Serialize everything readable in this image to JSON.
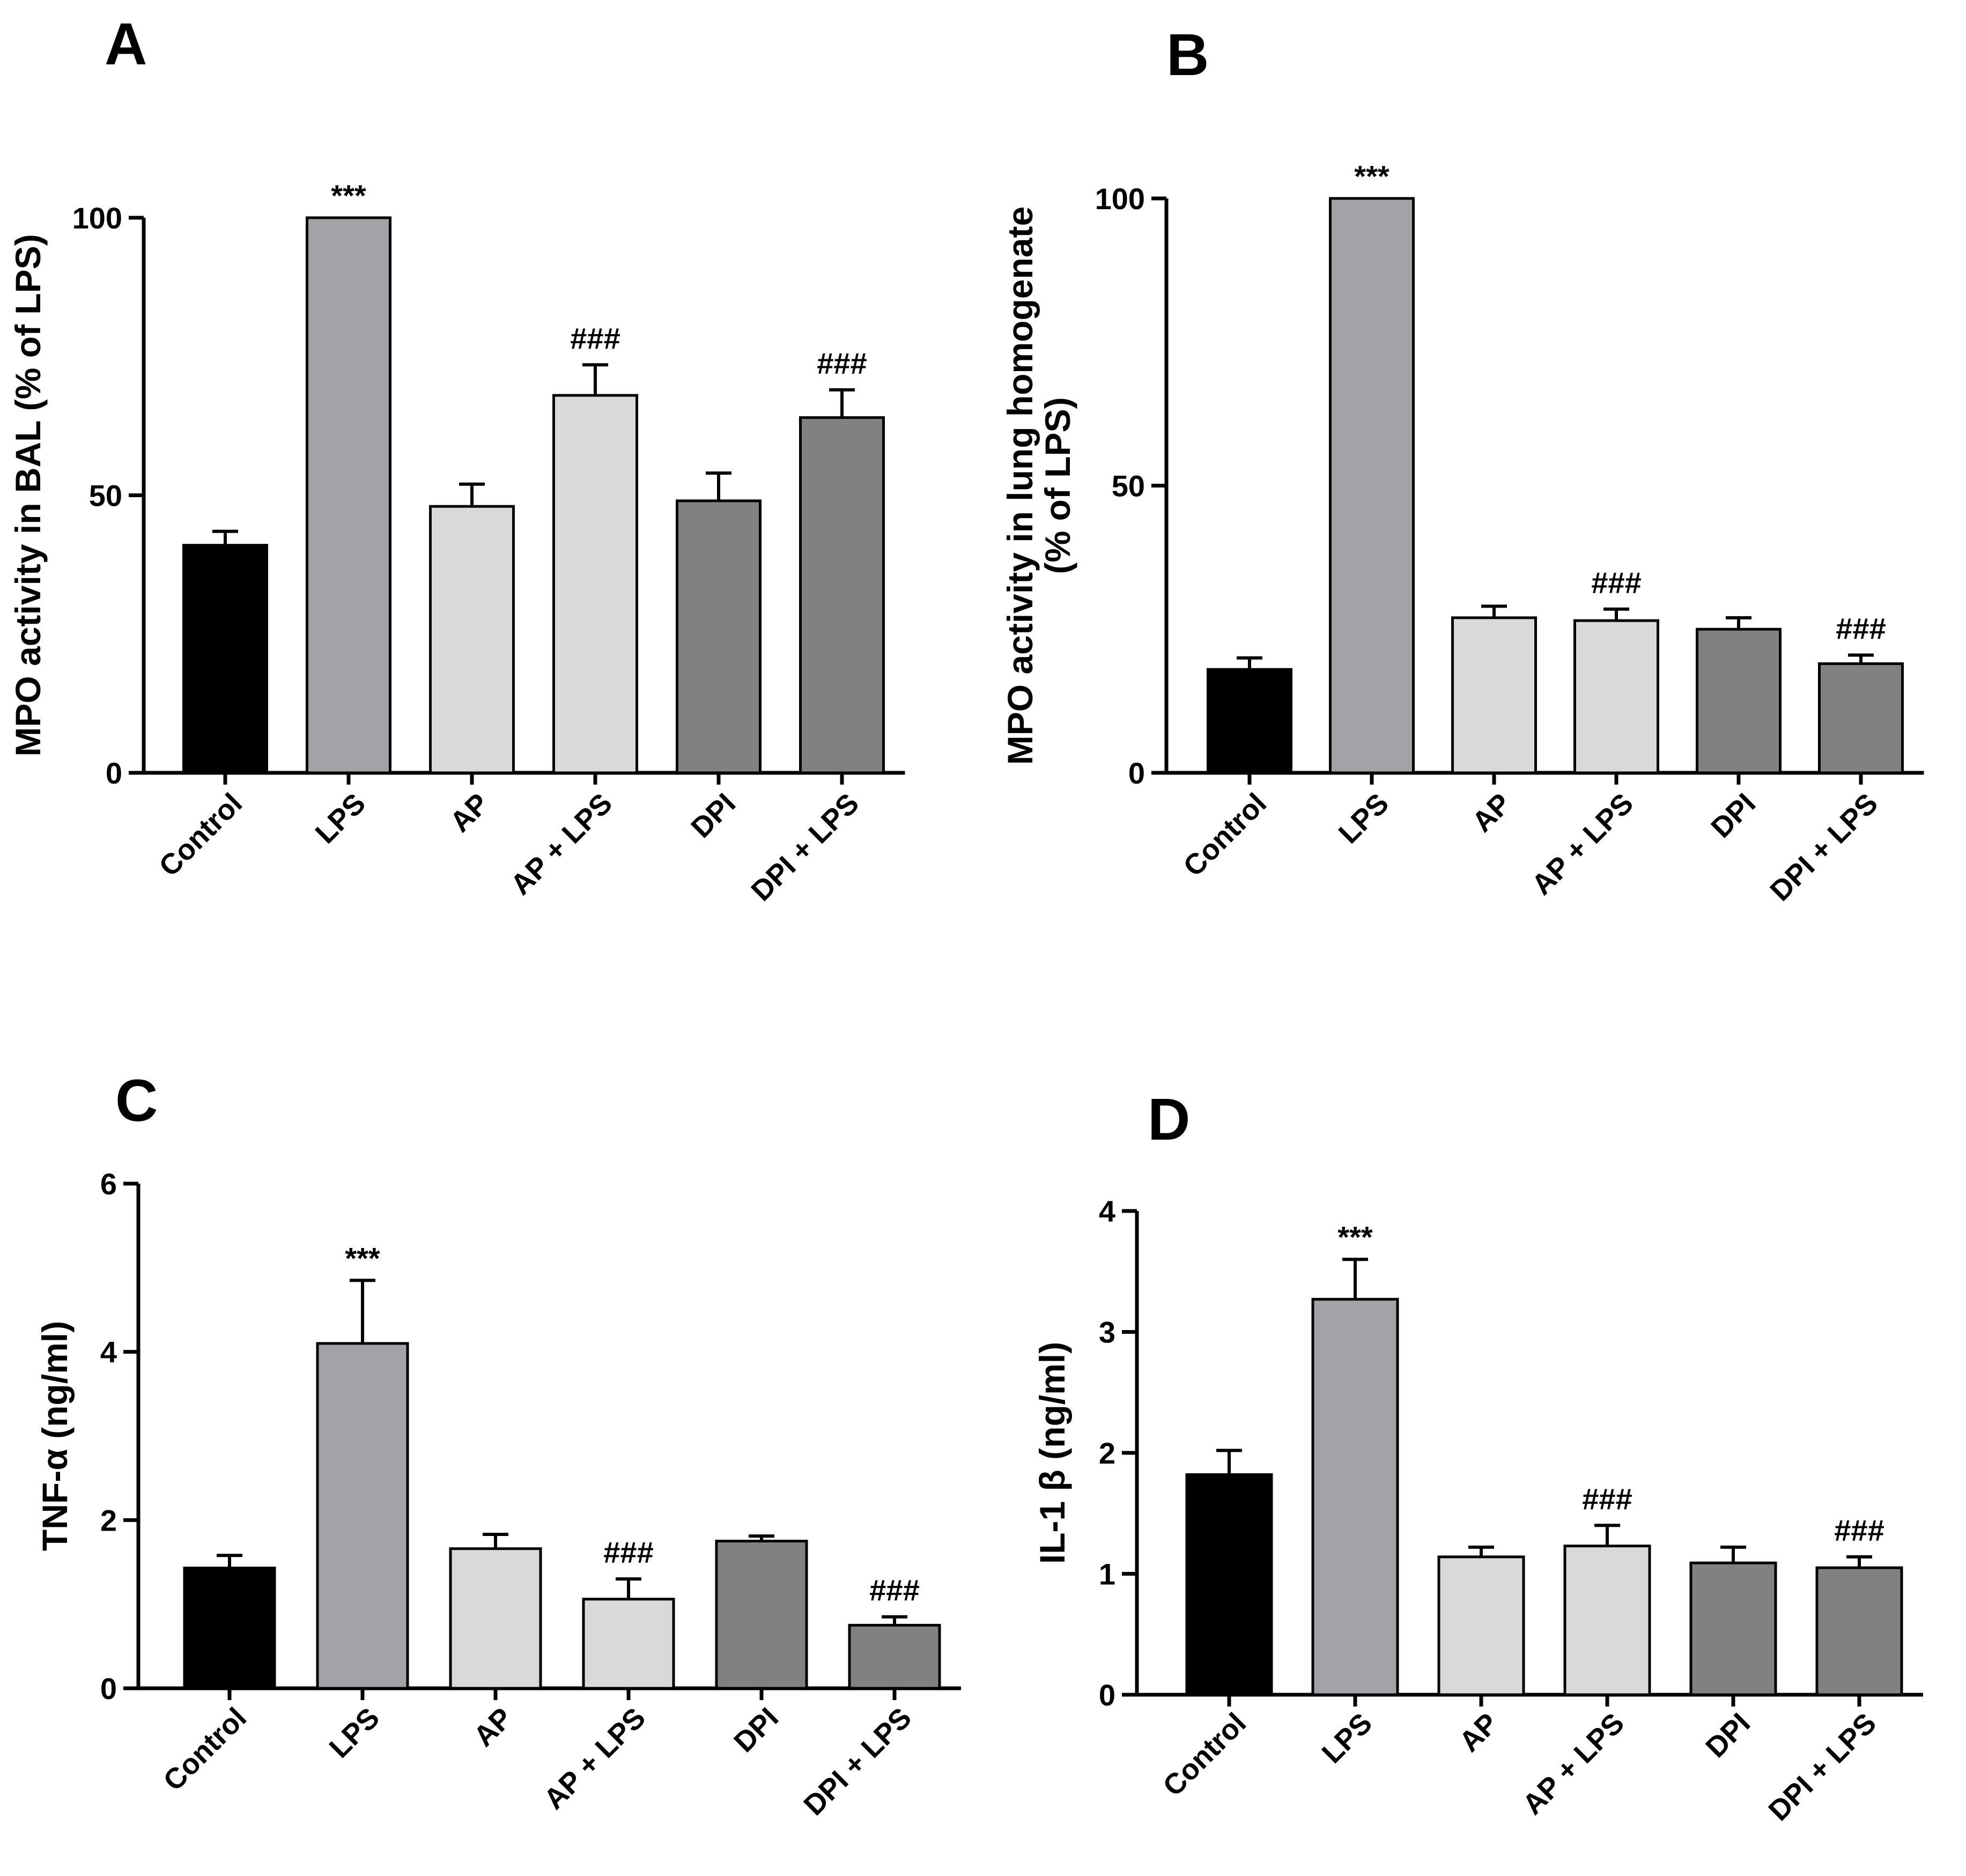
{
  "colors": {
    "control": "#000000",
    "lps": "#a3a2a7",
    "ap": "#d9d9d9",
    "dpi": "#818181",
    "axis": "#000000"
  },
  "chart_data": [
    {
      "panel": "A",
      "type": "bar",
      "ylabel": [
        "MPO activity in BAL (% of LPS)"
      ],
      "categories": [
        "Control",
        "LPS",
        "AP",
        "AP + LPS",
        "DPI",
        "DPI + LPS"
      ],
      "values": [
        41,
        100,
        48,
        68,
        49,
        64
      ],
      "errors": [
        2.5,
        0,
        4,
        5.5,
        5,
        5
      ],
      "annotations": [
        "",
        "***",
        "",
        "###",
        "",
        "###"
      ],
      "bar_colors": [
        "#000000",
        "#a3a2a7",
        "#d9d9d9",
        "#d9d9d9",
        "#818181",
        "#818181"
      ],
      "ylim": [
        0,
        100
      ],
      "yticks": [
        0,
        50,
        100
      ]
    },
    {
      "panel": "B",
      "type": "bar",
      "ylabel": [
        "MPO activity in lung homogenate",
        "(% of LPS)"
      ],
      "categories": [
        "Control",
        "LPS",
        "AP",
        "AP + LPS",
        "DPI",
        "DPI + LPS"
      ],
      "values": [
        18,
        100,
        27,
        26.5,
        25,
        19
      ],
      "errors": [
        2,
        0,
        2,
        2,
        2,
        1.5
      ],
      "annotations": [
        "",
        "***",
        "",
        "###",
        "",
        "###"
      ],
      "bar_colors": [
        "#000000",
        "#a3a2a7",
        "#d9d9d9",
        "#d9d9d9",
        "#818181",
        "#818181"
      ],
      "ylim": [
        0,
        100
      ],
      "yticks": [
        0,
        50,
        100
      ]
    },
    {
      "panel": "C",
      "type": "bar",
      "ylabel": [
        "TNF-α (ng/ml)"
      ],
      "categories": [
        "Control",
        "LPS",
        "AP",
        "AP + LPS",
        "DPI",
        "DPI + LPS"
      ],
      "values": [
        1.43,
        4.1,
        1.66,
        1.06,
        1.75,
        0.75
      ],
      "errors": [
        0.15,
        0.75,
        0.17,
        0.24,
        0.06,
        0.1
      ],
      "annotations": [
        "",
        "***",
        "",
        "###",
        "",
        "###"
      ],
      "bar_colors": [
        "#000000",
        "#a3a2a7",
        "#d9d9d9",
        "#d9d9d9",
        "#818181",
        "#818181"
      ],
      "ylim": [
        0,
        6
      ],
      "yticks": [
        0,
        2,
        4,
        6
      ]
    },
    {
      "panel": "D",
      "type": "bar",
      "ylabel": [
        "IL-1 β (ng/ml)"
      ],
      "categories": [
        "Control",
        "LPS",
        "AP",
        "AP + LPS",
        "DPI",
        "DPI + LPS"
      ],
      "values": [
        1.82,
        3.27,
        1.14,
        1.23,
        1.09,
        1.05
      ],
      "errors": [
        0.2,
        0.33,
        0.08,
        0.17,
        0.13,
        0.09
      ],
      "annotations": [
        "",
        "***",
        "",
        "###",
        "",
        "###"
      ],
      "bar_colors": [
        "#000000",
        "#a3a2a7",
        "#d9d9d9",
        "#d9d9d9",
        "#818181",
        "#818181"
      ],
      "ylim": [
        0,
        4
      ],
      "yticks": [
        0,
        1,
        2,
        3,
        4
      ]
    }
  ]
}
